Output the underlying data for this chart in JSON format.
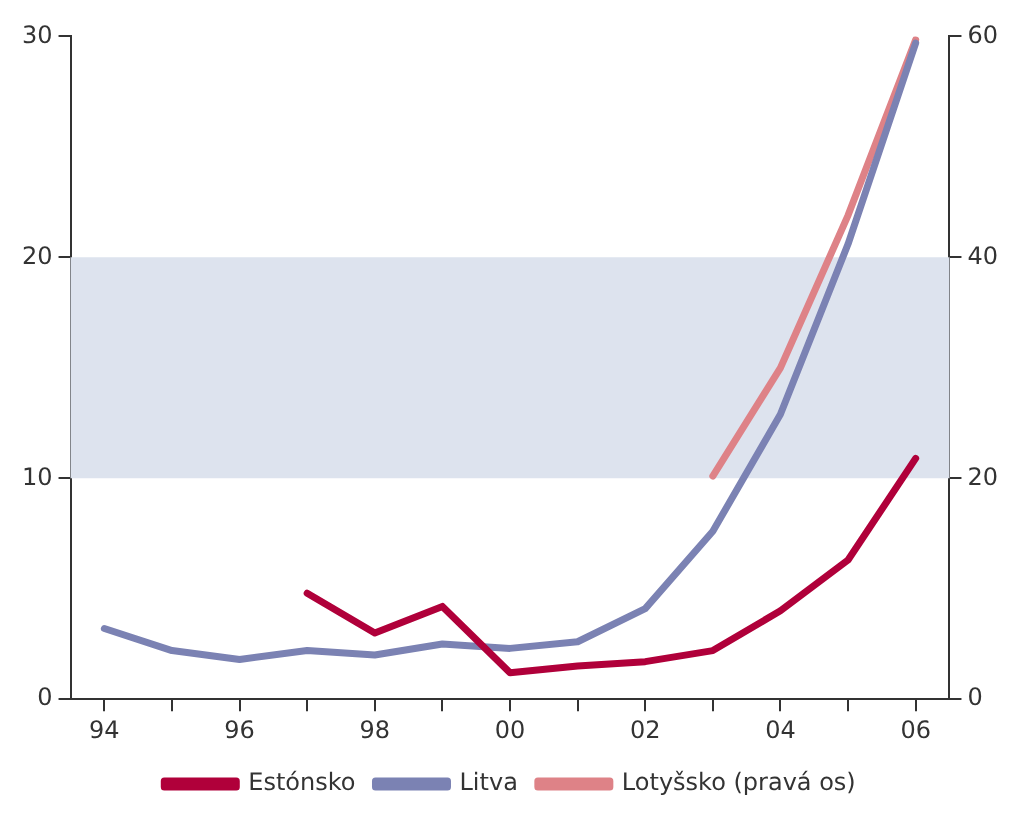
{
  "chart_data": {
    "type": "line",
    "categories": [
      "94",
      null,
      "96",
      null,
      "98",
      null,
      "00",
      null,
      "02",
      null,
      "04",
      null,
      "06"
    ],
    "series": [
      {
        "name": "Estónsko",
        "color": "#b0003a",
        "values": [
          null,
          null,
          null,
          4.8,
          3.0,
          4.2,
          1.2,
          1.5,
          1.7,
          2.2,
          4.0,
          6.3,
          10.9
        ]
      },
      {
        "name": "Litva",
        "color": "#7b82b3",
        "values": [
          3.2,
          2.2,
          1.8,
          2.2,
          2.0,
          2.5,
          2.3,
          2.6,
          4.1,
          7.6,
          12.9,
          20.6,
          29.7
        ]
      },
      {
        "name": "Lotyšsko (pravá os)",
        "color": "#de8287",
        "axis": "y2",
        "values": [
          null,
          null,
          null,
          null,
          null,
          null,
          null,
          null,
          null,
          20.2,
          30,
          43.8,
          59.7
        ]
      }
    ],
    "ylim": [
      0,
      30
    ],
    "yticks": [
      0,
      10,
      20,
      30
    ],
    "y2lim": [
      0,
      60
    ],
    "y2ticks": [
      0,
      20,
      40,
      60
    ],
    "bands": [
      {
        "axis": "y",
        "from": 10,
        "to": 20,
        "color": "#dde3ee"
      }
    ],
    "grid": false,
    "legend": "bottom",
    "marker": "none",
    "line_style": "solid"
  }
}
